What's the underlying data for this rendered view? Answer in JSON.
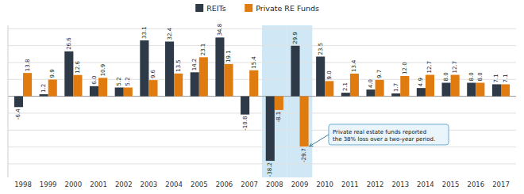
{
  "chart_data": {
    "type": "bar",
    "categories": [
      "1998",
      "1999",
      "2000",
      "2001",
      "2002",
      "2003",
      "2004",
      "2005",
      "2006",
      "2007",
      "2008",
      "2009",
      "2010",
      "2011",
      "2012",
      "2013",
      "2014",
      "2015",
      "2016",
      "2017"
    ],
    "series": [
      {
        "name": "REITs",
        "color": "#2e3a47",
        "values": [
          -6.4,
          1.2,
          26.6,
          6.0,
          5.2,
          33.1,
          32.4,
          14.2,
          34.8,
          -10.8,
          -38.2,
          29.9,
          23.5,
          2.1,
          4.0,
          1.7,
          4.9,
          8.0,
          8.0,
          7.1
        ],
        "value_labels": [
          "-6.4",
          "1.2",
          "26.6",
          "6.0",
          "5.2",
          "33.1",
          "32.4",
          "14.2",
          "34.8",
          "-10.8",
          "-38.2",
          "29.9",
          "23.5",
          "2.1",
          "4.0",
          "1.7",
          "4.9",
          "8.0",
          "8.0",
          "7.1"
        ]
      },
      {
        "name": "Private RE Funds",
        "color": "#e07b10",
        "values": [
          13.8,
          9.9,
          12.6,
          10.9,
          5.2,
          9.6,
          13.5,
          23.1,
          19.1,
          15.4,
          -8.1,
          -29.7,
          9.0,
          13.4,
          9.7,
          12.0,
          12.7,
          12.7,
          8.0,
          7.1
        ],
        "value_labels": [
          "13.8",
          "9.9",
          "12.6",
          "10.9",
          "5.2",
          "9.6",
          "13.5",
          "23.1",
          "19.1",
          "15.4",
          "-8.1",
          "-29.7",
          "9.0",
          "13.4",
          "9.7",
          "12.0",
          "12.7",
          "12.7",
          "8.0",
          "7.1"
        ]
      }
    ],
    "ylim": [
      -48,
      42
    ],
    "yticks": [
      -40,
      -30,
      -20,
      -10,
      0,
      10,
      20,
      30,
      40
    ],
    "grid": true,
    "tick_labels": "x",
    "data_labels": true,
    "legend": "top",
    "highlight": {
      "categories": [
        "2008",
        "2009"
      ],
      "color": "#d0e8f5"
    },
    "annotations": [
      {
        "text": "Private real estate funds reported\nthe 38% loss over a two-year period.",
        "category": "2009",
        "value": -29.7
      }
    ]
  }
}
